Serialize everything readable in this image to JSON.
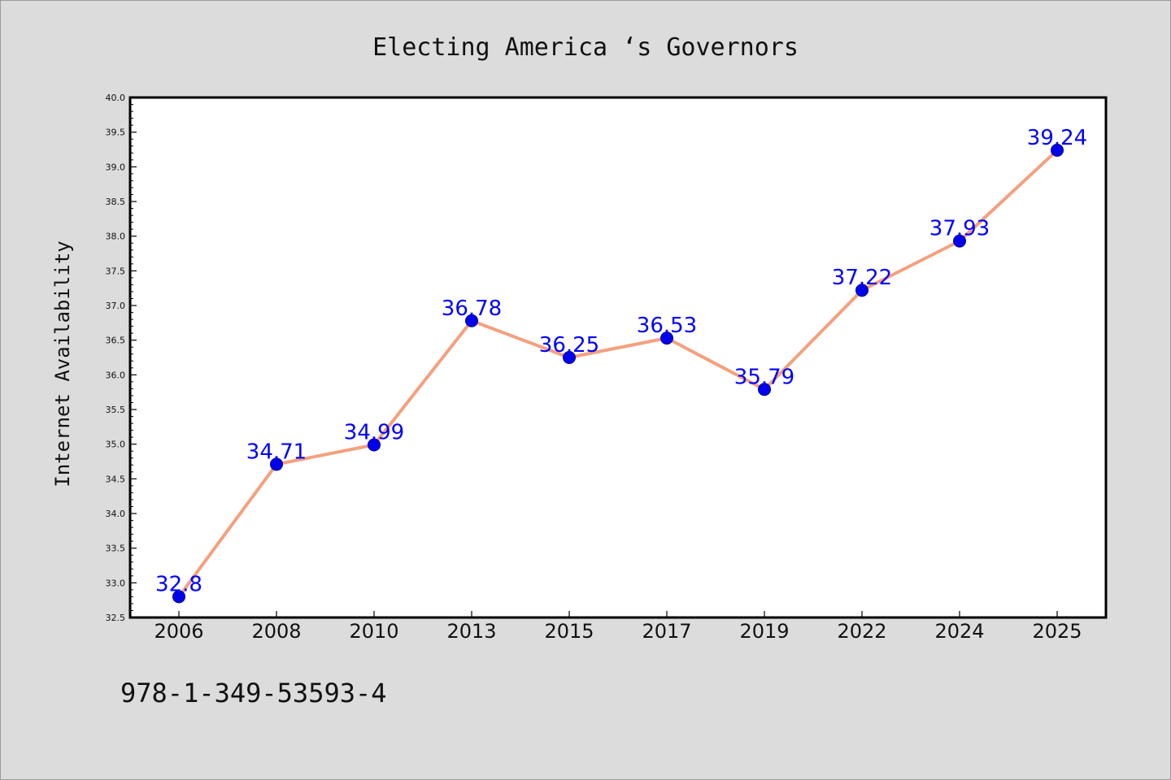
{
  "footer_text": "978-1-349-53593-4",
  "colors": {
    "background": "#dcdcdc",
    "plot_background": "#ffffff",
    "line": "#f4a07e",
    "marker": "#0000ee",
    "data_label": "#0000ff",
    "axis": "#000000"
  },
  "chart_data": {
    "type": "line",
    "title": "Electing America ‘s Governors",
    "xlabel": "",
    "ylabel": "Internet Availability",
    "categories": [
      "2006",
      "2008",
      "2010",
      "2013",
      "2015",
      "2017",
      "2019",
      "2022",
      "2024",
      "2025"
    ],
    "series": [
      {
        "values": [
          32.8,
          34.71,
          34.99,
          36.78,
          36.25,
          36.53,
          35.79,
          37.22,
          37.93,
          39.24
        ],
        "labels": [
          "32.8",
          "34.71",
          "34.99",
          "36.78",
          "36.25",
          "36.53",
          "35.79",
          "37.22",
          "37.93",
          "39.24"
        ]
      }
    ],
    "ylim": [
      32.5,
      40.0
    ],
    "yticks": [
      "32.5",
      "33.0",
      "33.5",
      "34.0",
      "34.5",
      "35.0",
      "35.5",
      "36.0",
      "36.5",
      "37.0",
      "37.5",
      "38.0",
      "38.5",
      "39.0",
      "39.5",
      "40.0"
    ],
    "grid": false,
    "legend": "none",
    "markers": "circle"
  }
}
